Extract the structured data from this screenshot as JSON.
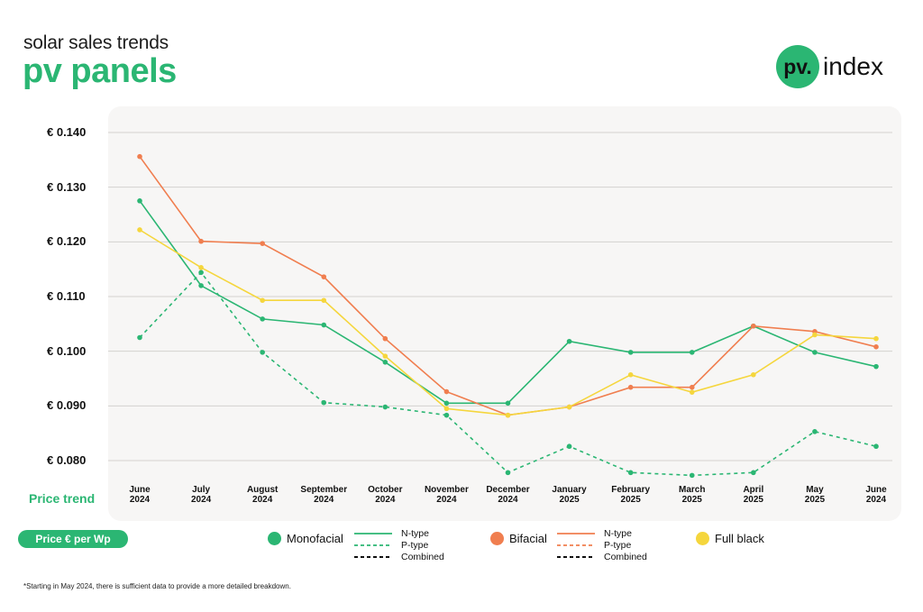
{
  "header": {
    "subtitle": "solar sales trends",
    "title": "pv panels"
  },
  "logo": {
    "badge": "pv.",
    "text": "index"
  },
  "labels": {
    "price_trend": "Price trend",
    "unit_pill": "Price € per Wp"
  },
  "legend": {
    "monofacial": {
      "name": "Monofacial",
      "color": "#2bb673",
      "types": [
        "N-type",
        "P-type",
        "Combined"
      ]
    },
    "bifacial": {
      "name": "Bifacial",
      "color": "#f07e4f",
      "types": [
        "N-type",
        "P-type",
        "Combined"
      ]
    },
    "full_black": {
      "name": "Full black",
      "color": "#f5d63d"
    }
  },
  "footnote": "*Starting in May 2024, there is sufficient data to provide a more detailed breakdown.",
  "chart_data": {
    "type": "line",
    "ylim": [
      0.075,
      0.142
    ],
    "y_ticks": [
      {
        "value": 0.14,
        "label": "€ 0.140"
      },
      {
        "value": 0.13,
        "label": "€ 0.130"
      },
      {
        "value": 0.12,
        "label": "€ 0.120"
      },
      {
        "value": 0.11,
        "label": "€ 0.110"
      },
      {
        "value": 0.1,
        "label": "€ 0.100"
      },
      {
        "value": 0.09,
        "label": "€ 0.090"
      },
      {
        "value": 0.08,
        "label": "€ 0.080"
      }
    ],
    "categories": [
      [
        "June",
        "2024"
      ],
      [
        "July",
        "2024"
      ],
      [
        "August",
        "2024"
      ],
      [
        "September",
        "2024"
      ],
      [
        "October",
        "2024"
      ],
      [
        "November",
        "2024"
      ],
      [
        "December",
        "2024"
      ],
      [
        "January",
        "2025"
      ],
      [
        "February",
        "2025"
      ],
      [
        "March",
        "2025"
      ],
      [
        "April",
        "2025"
      ],
      [
        "May",
        "2025"
      ],
      [
        "June",
        "2024"
      ]
    ],
    "grid": true,
    "series": [
      {
        "name": "Monofacial N-type",
        "color": "#2bb673",
        "dashed": false,
        "values": [
          0.1275,
          0.112,
          0.1059,
          0.1048,
          0.098,
          0.0905,
          0.0905,
          0.1018,
          0.0998,
          0.0998,
          0.1046,
          0.0998,
          0.0972
        ]
      },
      {
        "name": "Monofacial P-type",
        "color": "#2bb673",
        "dashed": true,
        "values": [
          0.1025,
          0.1144,
          0.0998,
          0.0906,
          0.0898,
          0.0883,
          0.0778,
          0.0826,
          0.0778,
          0.0773,
          0.0778,
          0.0853,
          0.0826
        ]
      },
      {
        "name": "Bifacial N-type",
        "color": "#f07e4f",
        "dashed": false,
        "values": [
          0.1356,
          0.1201,
          0.1197,
          0.1136,
          0.1023,
          0.0926,
          0.0883,
          0.0898,
          0.0934,
          0.0934,
          0.1046,
          0.1036,
          0.1008
        ]
      },
      {
        "name": "Full black",
        "color": "#f5d63d",
        "dashed": false,
        "values": [
          0.1222,
          0.1153,
          0.1093,
          0.1093,
          0.0991,
          0.0895,
          0.0883,
          0.0898,
          0.0957,
          0.0925,
          0.0957,
          0.103,
          0.1023
        ]
      }
    ]
  }
}
